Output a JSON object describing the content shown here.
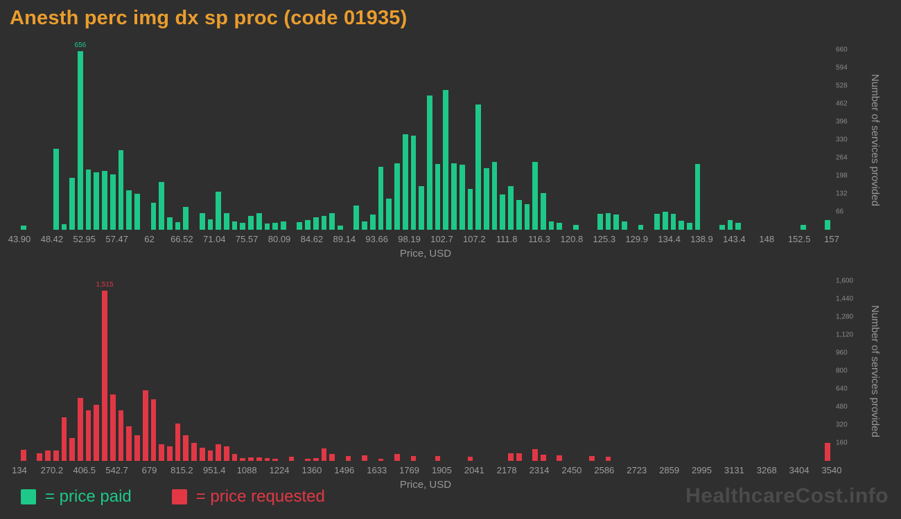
{
  "page": {
    "title": "Anesth perc img dx sp proc (code 01935)",
    "title_color": "#ea9d2d",
    "background": "#2f2f2f",
    "watermark": "HealthcareCost.info"
  },
  "legend": {
    "paid_label": "= price paid",
    "requested_label": "= price requested",
    "paid_color": "#1ec888",
    "requested_color": "#e23845"
  },
  "chart_data": [
    {
      "id": "paid",
      "type": "bar",
      "series_name": "price paid",
      "color": "#1ec888",
      "xlabel": "Price, USD",
      "ylabel": "Number of services provided",
      "x_range": [
        43.9,
        157
      ],
      "ylim": [
        0,
        660
      ],
      "grid": false,
      "legend_position": "bottom-left",
      "peak_label": "656",
      "x_ticks": [
        "43.90",
        "48.42",
        "52.95",
        "57.47",
        "62",
        "66.52",
        "71.04",
        "75.57",
        "80.09",
        "84.62",
        "89.14",
        "93.66",
        "98.19",
        "102.7",
        "107.2",
        "111.8",
        "116.3",
        "120.8",
        "125.3",
        "129.9",
        "134.4",
        "138.9",
        "143.4",
        "148",
        "152.5",
        "157"
      ],
      "y_ticks": [
        "66",
        "132",
        "198",
        "264",
        "330",
        "396",
        "462",
        "528",
        "594",
        "660"
      ],
      "values": [
        15,
        0,
        0,
        0,
        298,
        20,
        190,
        656,
        222,
        210,
        216,
        203,
        292,
        145,
        132,
        0,
        98,
        176,
        47,
        28,
        85,
        0,
        60,
        38,
        140,
        62,
        30,
        25,
        52,
        62,
        22,
        25,
        30,
        0,
        28,
        35,
        45,
        52,
        60,
        15,
        0,
        88,
        30,
        55,
        230,
        115,
        245,
        350,
        345,
        160,
        492,
        240,
        512,
        245,
        238,
        150,
        460,
        225,
        250,
        130,
        160,
        110,
        95,
        250,
        135,
        30,
        25,
        0,
        18,
        0,
        0,
        58,
        62,
        55,
        30,
        0,
        18,
        0,
        58,
        65,
        58,
        32,
        25,
        240,
        0,
        0,
        18,
        35,
        25,
        0,
        0,
        0,
        0,
        0,
        0,
        0,
        18,
        0,
        0,
        35
      ]
    },
    {
      "id": "requested",
      "type": "bar",
      "series_name": "price requested",
      "color": "#e23845",
      "xlabel": "Price, USD",
      "ylabel": "Number of services provided",
      "x_range": [
        134,
        3540
      ],
      "ylim": [
        0,
        1600
      ],
      "grid": false,
      "legend_position": "bottom-left",
      "peak_label": "1,515",
      "x_ticks": [
        "134",
        "270.2",
        "406.5",
        "542.7",
        "679",
        "815.2",
        "951.4",
        "1088",
        "1224",
        "1360",
        "1496",
        "1633",
        "1769",
        "1905",
        "2041",
        "2178",
        "2314",
        "2450",
        "2586",
        "2723",
        "2859",
        "2995",
        "3131",
        "3268",
        "3404",
        "3540"
      ],
      "y_ticks": [
        "160",
        "320",
        "480",
        "640",
        "800",
        "960",
        "1,120",
        "1,280",
        "1,440",
        "1,600"
      ],
      "values": [
        100,
        0,
        70,
        90,
        95,
        390,
        205,
        560,
        450,
        500,
        1515,
        590,
        450,
        310,
        225,
        630,
        545,
        150,
        130,
        330,
        230,
        160,
        120,
        90,
        150,
        130,
        60,
        25,
        30,
        30,
        25,
        20,
        0,
        35,
        0,
        20,
        25,
        110,
        60,
        0,
        45,
        0,
        50,
        0,
        20,
        0,
        60,
        0,
        45,
        0,
        0,
        45,
        0,
        0,
        0,
        40,
        0,
        0,
        0,
        0,
        70,
        70,
        0,
        105,
        55,
        0,
        50,
        0,
        0,
        0,
        45,
        0,
        40,
        0,
        0,
        0,
        0,
        0,
        0,
        0,
        0,
        0,
        0,
        0,
        0,
        0,
        0,
        0,
        0,
        0,
        0,
        0,
        0,
        0,
        0,
        0,
        0,
        0,
        0,
        160
      ]
    }
  ]
}
